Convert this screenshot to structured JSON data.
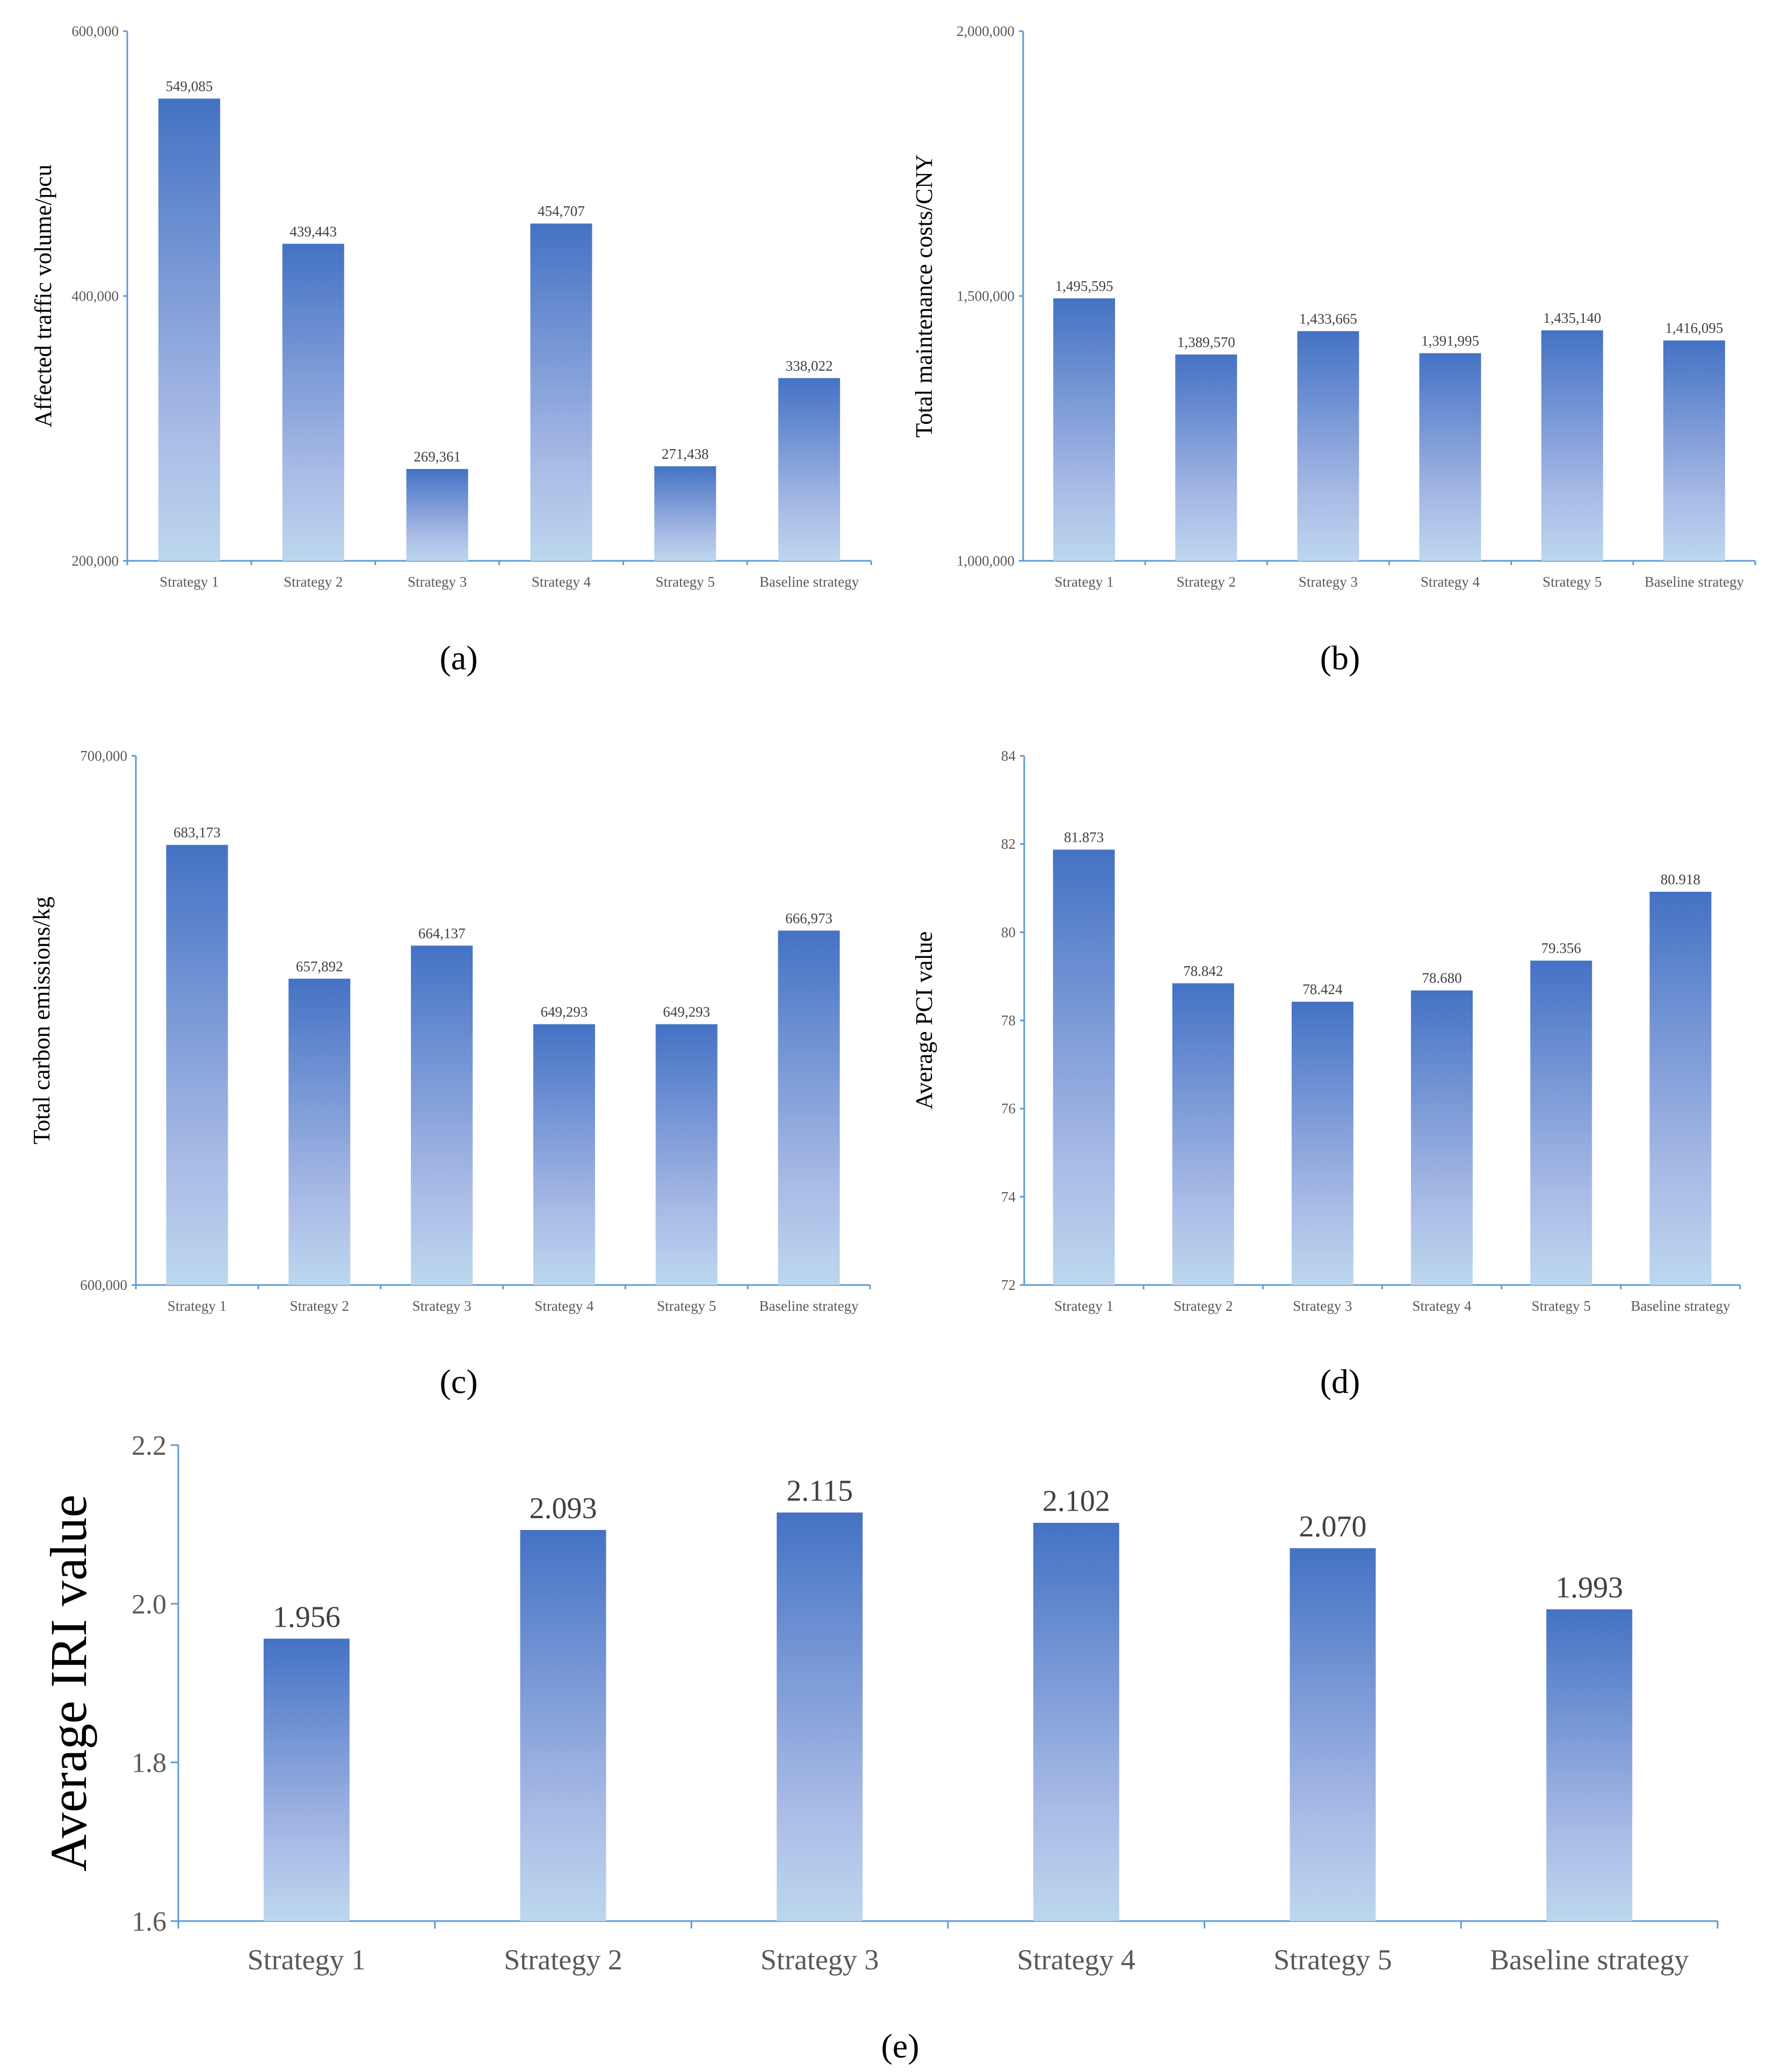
{
  "chart_data": [
    {
      "panel": "a",
      "type": "bar",
      "categories": [
        "Strategy 1",
        "Strategy 2",
        "Strategy 3",
        "Strategy 4",
        "Strategy 5",
        "Baseline strategy"
      ],
      "values": [
        549085,
        439443,
        269361,
        454707,
        271438,
        338022
      ],
      "value_labels": [
        "549,085",
        "439,443",
        "269,361",
        "454,707",
        "271,438",
        "338,022"
      ],
      "ylabel": "Affected traffic volume/pcu",
      "ylim": [
        200000,
        600000
      ],
      "yticks": [
        200000,
        400000,
        600000
      ],
      "ytick_labels": [
        "200,000",
        "400,000",
        "600,000"
      ],
      "grid": false
    },
    {
      "panel": "b",
      "type": "bar",
      "categories": [
        "Strategy 1",
        "Strategy 2",
        "Strategy 3",
        "Strategy 4",
        "Strategy 5",
        "Baseline strategy"
      ],
      "values": [
        1495595,
        1389570,
        1433665,
        1391995,
        1435140,
        1416095
      ],
      "value_labels": [
        "1,495,595",
        "1,389,570",
        "1,433,665",
        "1,391,995",
        "1,435,140",
        "1,416,095"
      ],
      "ylabel": "Total maintenance costs/CNY",
      "ylim": [
        1000000,
        2000000
      ],
      "yticks": [
        1000000,
        1500000,
        2000000
      ],
      "ytick_labels": [
        "1,000,000",
        "1,500,000",
        "2,000,000"
      ],
      "grid": false
    },
    {
      "panel": "c",
      "type": "bar",
      "categories": [
        "Strategy 1",
        "Strategy 2",
        "Strategy 3",
        "Strategy 4",
        "Strategy 5",
        "Baseline strategy"
      ],
      "values": [
        683173,
        657892,
        664137,
        649293,
        649293,
        666973
      ],
      "value_labels": [
        "683,173",
        "657,892",
        "664,137",
        "649,293",
        "649,293",
        "666,973"
      ],
      "ylabel": "Total carbon emissions/kg",
      "ylim": [
        600000,
        700000
      ],
      "yticks": [
        600000,
        700000
      ],
      "ytick_labels": [
        "600,000",
        "700,000"
      ],
      "grid": false
    },
    {
      "panel": "d",
      "type": "bar",
      "categories": [
        "Strategy 1",
        "Strategy 2",
        "Strategy 3",
        "Strategy 4",
        "Strategy 5",
        "Baseline strategy"
      ],
      "values": [
        81.873,
        78.842,
        78.424,
        78.68,
        79.356,
        80.918
      ],
      "value_labels": [
        "81.873",
        "78.842",
        "78.424",
        "78.680",
        "79.356",
        "80.918"
      ],
      "ylabel": "Average PCI value",
      "ylim": [
        72,
        84
      ],
      "yticks": [
        72,
        74,
        76,
        78,
        80,
        82,
        84
      ],
      "ytick_labels": [
        "72",
        "74",
        "76",
        "78",
        "80",
        "82",
        "84"
      ],
      "grid": false
    },
    {
      "panel": "e",
      "type": "bar",
      "categories": [
        "Strategy 1",
        "Strategy 2",
        "Strategy 3",
        "Strategy 4",
        "Strategy 5",
        "Baseline strategy"
      ],
      "values": [
        1.956,
        2.093,
        2.115,
        2.102,
        2.07,
        1.993
      ],
      "value_labels": [
        "1.956",
        "2.093",
        "2.115",
        "2.102",
        "2.070",
        "1.993"
      ],
      "ylabel": "Average IRI value",
      "ylim": [
        1.6,
        2.2
      ],
      "yticks": [
        1.6,
        1.8,
        2.0,
        2.2
      ],
      "ytick_labels": [
        "1.6",
        "1.8",
        "2.0",
        "2.2"
      ],
      "grid": false
    }
  ],
  "panel_labels": [
    "(a)",
    "(b)",
    "(c)",
    "(d)",
    "(e)"
  ],
  "colors": {
    "bar_top": "#4472c4",
    "bar_mid": "#a9bbe6",
    "bar_bottom": "#bdd7ee",
    "axis": "#5b9bd5"
  }
}
